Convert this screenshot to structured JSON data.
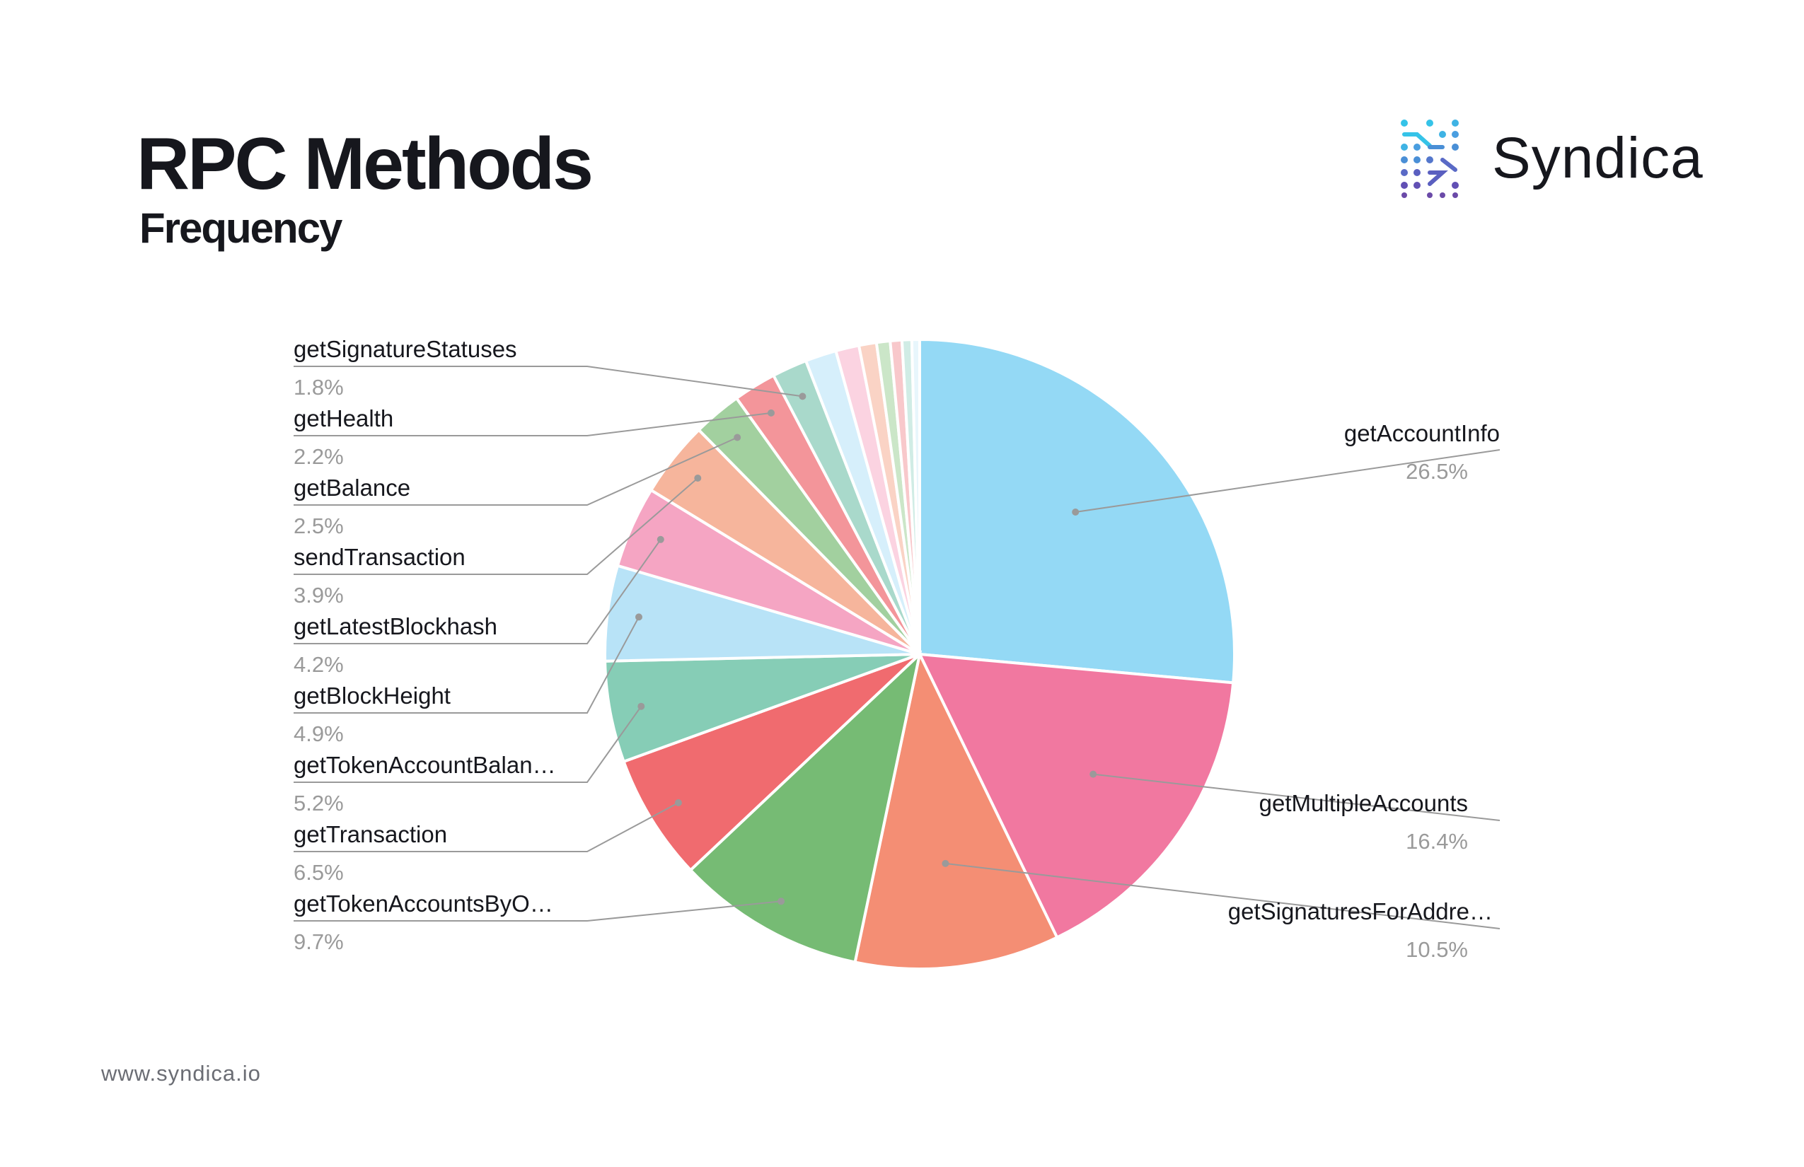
{
  "header": {
    "title": "RPC Methods",
    "subtitle": "Frequency"
  },
  "brand": {
    "name": "Syndica",
    "logo_icon": "syndica-dots-logo",
    "logo_colors": [
      "#35c3e8",
      "#4a8fd6",
      "#5a5fc0",
      "#6b4aa8"
    ]
  },
  "footer": {
    "url": "www.syndica.io"
  },
  "chart_data": {
    "type": "pie",
    "title": "RPC Methods",
    "subtitle": "Frequency",
    "start": "12 o'clock, clockwise",
    "slices": [
      {
        "label": "getAccountInfo",
        "value": 26.5,
        "pct_label": "26.5%",
        "color": "#94d9f5",
        "labeled": true
      },
      {
        "label": "getMultipleAccounts",
        "value": 16.4,
        "pct_label": "16.4%",
        "color": "#f178a0",
        "labeled": true
      },
      {
        "label": "getSignaturesForAddre…",
        "value": 10.5,
        "pct_label": "10.5%",
        "color": "#f48e74",
        "labeled": true
      },
      {
        "label": "getTokenAccountsByO…",
        "value": 9.7,
        "pct_label": "9.7%",
        "color": "#76bb74",
        "labeled": true
      },
      {
        "label": "getTransaction",
        "value": 6.5,
        "pct_label": "6.5%",
        "color": "#f06b6f",
        "labeled": true
      },
      {
        "label": "getTokenAccountBalan…",
        "value": 5.2,
        "pct_label": "5.2%",
        "color": "#86cdb6",
        "labeled": true
      },
      {
        "label": "getBlockHeight",
        "value": 4.9,
        "pct_label": "4.9%",
        "color": "#b8e3f7",
        "labeled": true
      },
      {
        "label": "getLatestBlockhash",
        "value": 4.2,
        "pct_label": "4.2%",
        "color": "#f5a5c3",
        "labeled": true
      },
      {
        "label": "sendTransaction",
        "value": 3.9,
        "pct_label": "3.9%",
        "color": "#f6b59c",
        "labeled": true
      },
      {
        "label": "getBalance",
        "value": 2.5,
        "pct_label": "2.5%",
        "color": "#a2d09f",
        "labeled": true
      },
      {
        "label": "getHealth",
        "value": 2.2,
        "pct_label": "2.2%",
        "color": "#f3959a",
        "labeled": true
      },
      {
        "label": "getSignatureStatuses",
        "value": 1.8,
        "pct_label": "1.8%",
        "color": "#a9d9cb",
        "labeled": true
      },
      {
        "label": "",
        "value": 1.6,
        "color": "#d6effb",
        "labeled": false
      },
      {
        "label": "",
        "value": 1.2,
        "color": "#fbd3e1",
        "labeled": false
      },
      {
        "label": "",
        "value": 0.9,
        "color": "#fad3c5",
        "labeled": false
      },
      {
        "label": "",
        "value": 0.7,
        "color": "#cbe6c8",
        "labeled": false
      },
      {
        "label": "",
        "value": 0.6,
        "color": "#f8c8cb",
        "labeled": false
      },
      {
        "label": "",
        "value": 0.5,
        "color": "#d0ece5",
        "labeled": false
      },
      {
        "label": "",
        "value": 0.4,
        "color": "#e8f6fc",
        "labeled": false
      }
    ]
  }
}
